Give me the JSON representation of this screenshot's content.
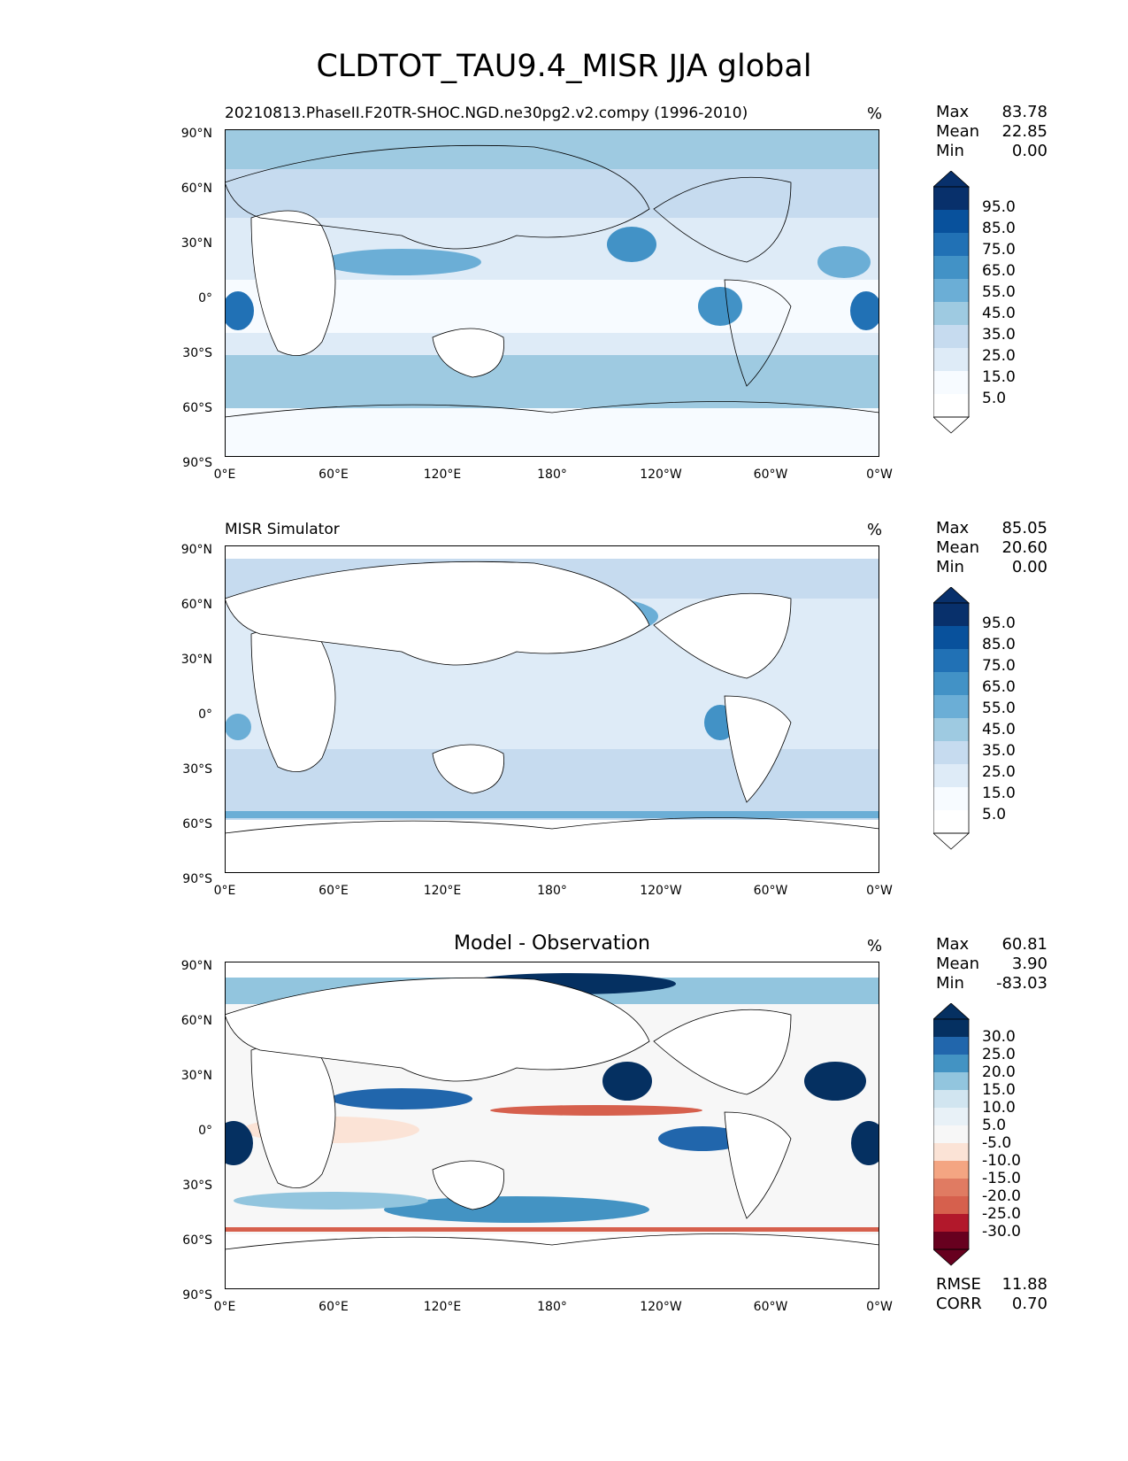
{
  "figure": {
    "title": "CLDTOT_TAU9.4_MISR JJA global"
  },
  "axes": {
    "lat_labels": [
      "90°N",
      "60°N",
      "30°N",
      "0°",
      "30°S",
      "60°S",
      "90°S"
    ],
    "lon_labels": [
      "0°E",
      "60°E",
      "120°E",
      "180°",
      "120°W",
      "60°W",
      "0°W"
    ]
  },
  "panels": [
    {
      "title": "20210813.PhaseII.F20TR-SHOC.NGD.ne30pg2.v2.compy (1996-2010)",
      "units": "%",
      "stats": [
        {
          "label": "Max",
          "value": "83.78"
        },
        {
          "label": "Mean",
          "value": "22.85"
        },
        {
          "label": "Min",
          "value": "0.00"
        }
      ],
      "colorbar": {
        "ticks": [
          "95.0",
          "85.0",
          "75.0",
          "65.0",
          "55.0",
          "45.0",
          "35.0",
          "25.0",
          "15.0",
          "5.0"
        ],
        "colors": [
          "#08306b",
          "#08519c",
          "#2171b5",
          "#4292c6",
          "#6baed6",
          "#9ecae1",
          "#c6dbef",
          "#deebf7",
          "#f7fbff",
          "#ffffff"
        ]
      }
    },
    {
      "title": "MISR Simulator",
      "units": "%",
      "stats": [
        {
          "label": "Max",
          "value": "85.05"
        },
        {
          "label": "Mean",
          "value": "20.60"
        },
        {
          "label": "Min",
          "value": "0.00"
        }
      ],
      "colorbar": {
        "ticks": [
          "95.0",
          "85.0",
          "75.0",
          "65.0",
          "55.0",
          "45.0",
          "35.0",
          "25.0",
          "15.0",
          "5.0"
        ],
        "colors": [
          "#08306b",
          "#08519c",
          "#2171b5",
          "#4292c6",
          "#6baed6",
          "#9ecae1",
          "#c6dbef",
          "#deebf7",
          "#f7fbff",
          "#ffffff"
        ]
      }
    },
    {
      "title": "Model - Observation",
      "units": "%",
      "stats": [
        {
          "label": "Max",
          "value": "60.81"
        },
        {
          "label": "Mean",
          "value": "3.90"
        },
        {
          "label": "Min",
          "value": "-83.03"
        }
      ],
      "bottom_stats": [
        {
          "label": "RMSE",
          "value": "11.88"
        },
        {
          "label": "CORR",
          "value": "0.70"
        }
      ],
      "colorbar": {
        "ticks": [
          "30.0",
          "25.0",
          "20.0",
          "15.0",
          "10.0",
          "5.0",
          "-5.0",
          "-10.0",
          "-15.0",
          "-20.0",
          "-25.0",
          "-30.0"
        ],
        "colors": [
          "#053061",
          "#2166ac",
          "#4393c3",
          "#92c5de",
          "#d1e5f0",
          "#e8f1f7",
          "#f7f7f7",
          "#fbe3d6",
          "#f4a582",
          "#e07b62",
          "#d6604d",
          "#b2182b",
          "#67001f"
        ]
      }
    }
  ]
}
